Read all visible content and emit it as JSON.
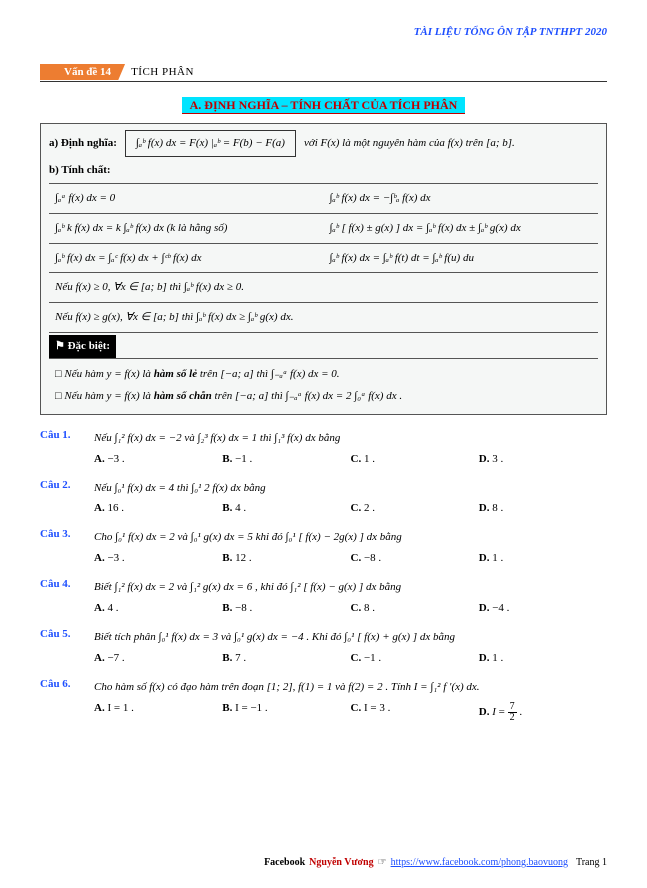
{
  "header": {
    "right": "TÀI LIỆU TỔNG ÔN TẬP TNTHPT 2020"
  },
  "topic": {
    "badge": "Vấn đề 14",
    "title": "TÍCH PHÂN"
  },
  "section_heading": "A. ĐỊNH NGHĨA – TÍNH CHẤT CỦA TÍCH PHÂN",
  "theory": {
    "def_label": "a) Định nghĩa:",
    "def_formula": "∫ₐᵇ f(x) dx = F(x) |ₐᵇ = F(b) − F(a)",
    "def_tail": "với  F(x)  là một nguyên hàm của  f(x)  trên  [a; b].",
    "prop_label": "b) Tính chất:",
    "rows": [
      [
        "∫ₐᵃ f(x) dx = 0",
        "∫ₐᵇ f(x) dx = −∫ᵇₐ f(x) dx"
      ],
      [
        "∫ₐᵇ k f(x) dx = k ∫ₐᵇ f(x) dx  (k là hằng số)",
        "∫ₐᵇ [ f(x) ± g(x) ] dx = ∫ₐᵇ f(x) dx ± ∫ₐᵇ g(x) dx"
      ],
      [
        "∫ₐᵇ f(x) dx = ∫ₐᶜ f(x) dx + ∫ᶜᵇ f(x) dx",
        "∫ₐᵇ f(x) dx = ∫ₐᵇ f(t) dt = ∫ₐᵇ f(u) du"
      ]
    ],
    "line1": "Nếu  f(x) ≥ 0,  ∀x ∈ [a; b]  thì  ∫ₐᵇ f(x) dx ≥ 0.",
    "line2": "Nếu  f(x) ≥ g(x),  ∀x ∈ [a; b]  thì  ∫ₐᵇ f(x) dx ≥ ∫ₐᵇ g(x) dx.",
    "dacbiet_title": "⚑ Đặc biệt:",
    "dacbiet_1": "□ Nếu hàm  y = f(x)  là hàm số lẻ trên  [−a; a]  thì  ∫₋ₐᵃ f(x) dx = 0.",
    "dacbiet_2": "□ Nếu hàm  y = f(x)  là hàm số chẵn trên  [−a; a]  thì  ∫₋ₐᵃ f(x) dx = 2 ∫₀ᵃ f(x) dx ."
  },
  "questions": [
    {
      "label": "Câu 1.",
      "text": "Nếu  ∫₁² f(x) dx = −2  và  ∫₂³ f(x) dx = 1  thì  ∫₁³ f(x) dx  bằng",
      "opts": [
        "A. −3 .",
        "B. −1 .",
        "C. 1 .",
        "D. 3 ."
      ]
    },
    {
      "label": "Câu 2.",
      "text": "Nếu  ∫₀¹ f(x) dx = 4  thì  ∫₀¹ 2 f(x) dx  bằng",
      "opts": [
        "A. 16 .",
        "B. 4 .",
        "C. 2 .",
        "D. 8 ."
      ]
    },
    {
      "label": "Câu 3.",
      "text": "Cho  ∫₀¹ f(x) dx = 2  và  ∫₀¹ g(x) dx = 5  khi đó  ∫₀¹ [ f(x) − 2g(x) ] dx  bằng",
      "opts": [
        "A. −3 .",
        "B. 12 .",
        "C. −8 .",
        "D. 1 ."
      ]
    },
    {
      "label": "Câu 4.",
      "text": "Biết  ∫₁² f(x) dx = 2  và  ∫₁² g(x) dx = 6 , khi đó  ∫₁² [ f(x) − g(x) ] dx  bằng",
      "opts": [
        "A. 4 .",
        "B. −8 .",
        "C. 8 .",
        "D. −4 ."
      ]
    },
    {
      "label": "Câu 5.",
      "text": "Biết tích phân  ∫₀¹ f(x) dx = 3  và  ∫₀¹ g(x) dx = −4 . Khi đó  ∫₀¹ [ f(x) + g(x) ] dx  bằng",
      "opts": [
        "A. −7 .",
        "B. 7 .",
        "C. −1 .",
        "D. 1 ."
      ]
    },
    {
      "label": "Câu 6.",
      "text": "Cho hàm số  f(x)  có đạo hàm trên đoạn  [1; 2],  f(1) = 1  và  f(2) = 2 . Tính  I = ∫₁² f ′(x) dx.",
      "opts": [
        "A. I = 1 .",
        "B. I = −1 .",
        "C. I = 3 .",
        "D. I = 7⁄2 ."
      ]
    }
  ],
  "footer": {
    "fb": "Facebook",
    "name": "Nguyễn Vương",
    "hand": "☞",
    "link": "https://www.facebook.com/phong.baovuong",
    "page": "Trang 1"
  },
  "colors": {
    "accent_blue": "#1e4fff",
    "accent_orange": "#ed7d31",
    "accent_cyan": "#00e4ff",
    "accent_red": "#c00000",
    "box_bg": "#f5f7f6"
  }
}
